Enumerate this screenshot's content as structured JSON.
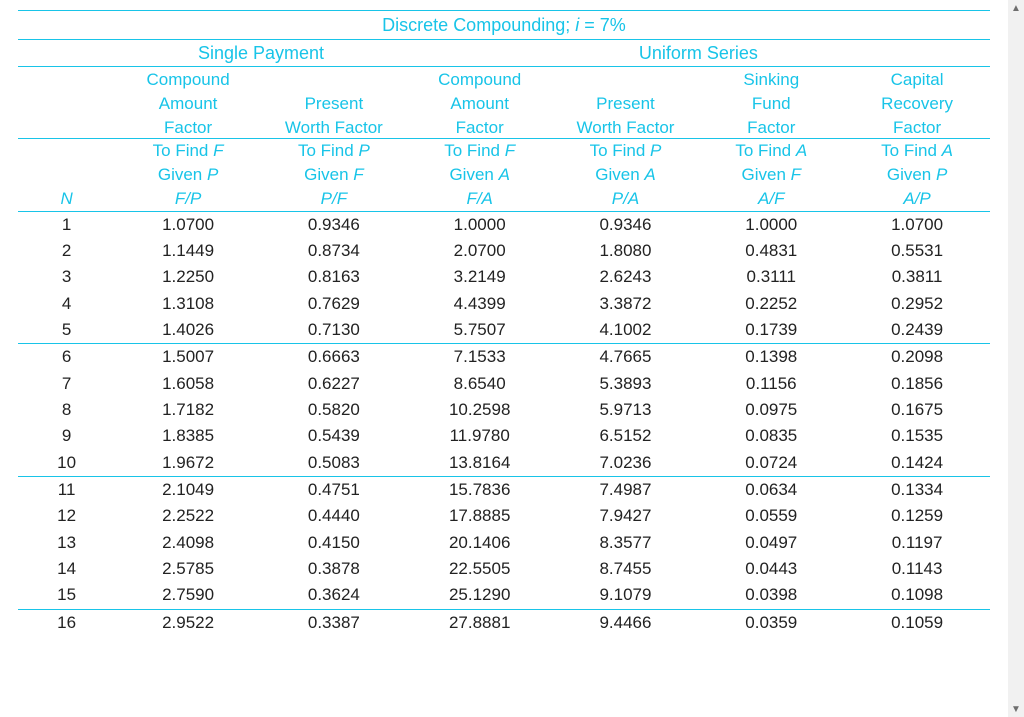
{
  "colors": {
    "accent": "#18c4e8",
    "data": "#222222",
    "background": "#ffffff",
    "scrollbar_track": "#f1f1f1",
    "scrollbar_arrow": "#6e6e6e"
  },
  "typography": {
    "header_fontsize": 18,
    "subheader_fontsize": 17,
    "data_fontsize": 17,
    "header_weight": "bold",
    "font_family": "Arial"
  },
  "title": {
    "prefix": "Discrete Compounding; ",
    "var": "i",
    "suffix": " = 7%"
  },
  "sections": {
    "single": "Single Payment",
    "uniform": "Uniform Series"
  },
  "n_label": "N",
  "columns": [
    {
      "name_lines": [
        "Compound",
        "Amount",
        "Factor"
      ],
      "find_prefix": "To Find ",
      "find_var": "F",
      "given_prefix": "Given ",
      "given_var": "P",
      "ratio_num": "F",
      "ratio_den": "P"
    },
    {
      "name_lines": [
        "",
        "Present",
        "Worth Factor"
      ],
      "find_prefix": "To Find ",
      "find_var": "P",
      "given_prefix": "Given ",
      "given_var": "F",
      "ratio_num": "P",
      "ratio_den": "F"
    },
    {
      "name_lines": [
        "Compound",
        "Amount",
        "Factor"
      ],
      "find_prefix": "To Find ",
      "find_var": "F",
      "given_prefix": "Given ",
      "given_var": "A",
      "ratio_num": "F",
      "ratio_den": "A"
    },
    {
      "name_lines": [
        "",
        "Present",
        "Worth Factor"
      ],
      "find_prefix": "To Find ",
      "find_var": "P",
      "given_prefix": "Given ",
      "given_var": "A",
      "ratio_num": "P",
      "ratio_den": "A"
    },
    {
      "name_lines": [
        "Sinking",
        "Fund",
        "Factor"
      ],
      "find_prefix": "To Find ",
      "find_var": "A",
      "given_prefix": "Given ",
      "given_var": "F",
      "ratio_num": "A",
      "ratio_den": "F"
    },
    {
      "name_lines": [
        "Capital",
        "Recovery",
        "Factor"
      ],
      "find_prefix": "To Find ",
      "find_var": "A",
      "given_prefix": "Given ",
      "given_var": "P",
      "ratio_num": "A",
      "ratio_den": "P"
    }
  ],
  "group_breaks": [
    5,
    10,
    15
  ],
  "rows": [
    {
      "n": 1,
      "v": [
        "1.0700",
        "0.9346",
        "1.0000",
        "0.9346",
        "1.0000",
        "1.0700"
      ]
    },
    {
      "n": 2,
      "v": [
        "1.1449",
        "0.8734",
        "2.0700",
        "1.8080",
        "0.4831",
        "0.5531"
      ]
    },
    {
      "n": 3,
      "v": [
        "1.2250",
        "0.8163",
        "3.2149",
        "2.6243",
        "0.3111",
        "0.3811"
      ]
    },
    {
      "n": 4,
      "v": [
        "1.3108",
        "0.7629",
        "4.4399",
        "3.3872",
        "0.2252",
        "0.2952"
      ]
    },
    {
      "n": 5,
      "v": [
        "1.4026",
        "0.7130",
        "5.7507",
        "4.1002",
        "0.1739",
        "0.2439"
      ]
    },
    {
      "n": 6,
      "v": [
        "1.5007",
        "0.6663",
        "7.1533",
        "4.7665",
        "0.1398",
        "0.2098"
      ]
    },
    {
      "n": 7,
      "v": [
        "1.6058",
        "0.6227",
        "8.6540",
        "5.3893",
        "0.1156",
        "0.1856"
      ]
    },
    {
      "n": 8,
      "v": [
        "1.7182",
        "0.5820",
        "10.2598",
        "5.9713",
        "0.0975",
        "0.1675"
      ]
    },
    {
      "n": 9,
      "v": [
        "1.8385",
        "0.5439",
        "11.9780",
        "6.5152",
        "0.0835",
        "0.1535"
      ]
    },
    {
      "n": 10,
      "v": [
        "1.9672",
        "0.5083",
        "13.8164",
        "7.0236",
        "0.0724",
        "0.1424"
      ]
    },
    {
      "n": 11,
      "v": [
        "2.1049",
        "0.4751",
        "15.7836",
        "7.4987",
        "0.0634",
        "0.1334"
      ]
    },
    {
      "n": 12,
      "v": [
        "2.2522",
        "0.4440",
        "17.8885",
        "7.9427",
        "0.0559",
        "0.1259"
      ]
    },
    {
      "n": 13,
      "v": [
        "2.4098",
        "0.4150",
        "20.1406",
        "8.3577",
        "0.0497",
        "0.1197"
      ]
    },
    {
      "n": 14,
      "v": [
        "2.5785",
        "0.3878",
        "22.5505",
        "8.7455",
        "0.0443",
        "0.1143"
      ]
    },
    {
      "n": 15,
      "v": [
        "2.7590",
        "0.3624",
        "25.1290",
        "9.1079",
        "0.0398",
        "0.1098"
      ]
    },
    {
      "n": 16,
      "v": [
        "2.9522",
        "0.3387",
        "27.8881",
        "9.4466",
        "0.0359",
        "0.1059"
      ]
    }
  ]
}
